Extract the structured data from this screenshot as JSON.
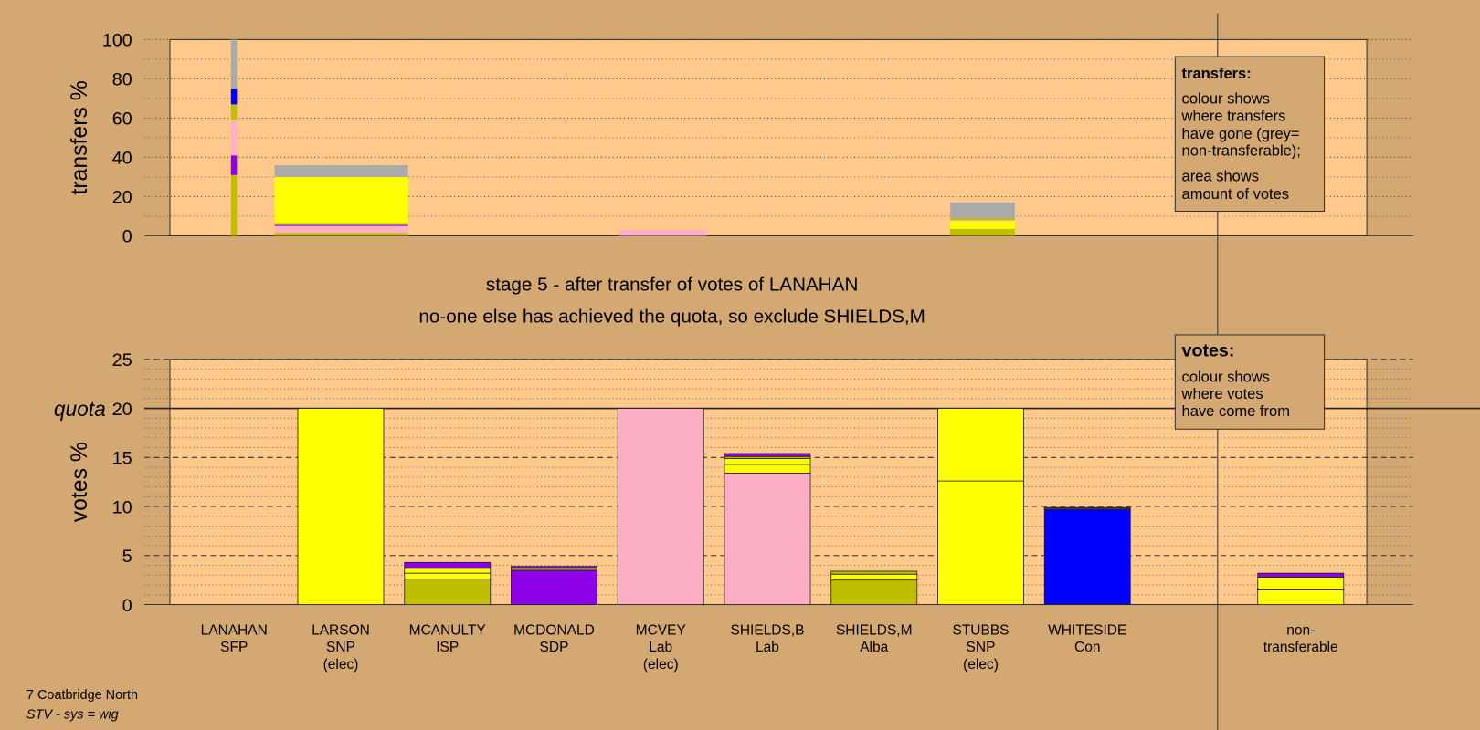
{
  "chart_data": [
    {
      "type": "mosaic",
      "ylabel": "transfers %",
      "ylim": [
        0,
        100
      ],
      "yticks": [
        0,
        20,
        40,
        60,
        80,
        100
      ],
      "yminor_ticks": [
        10,
        30,
        50,
        70,
        90
      ],
      "major_grid": "dotted",
      "xlim": [
        0,
        100
      ],
      "bars": [
        {
          "x": [
            5.1,
            5.6
          ],
          "segments": [
            {
              "color": "#bfbf00",
              "value": 31
            },
            {
              "color": "#8b00e8",
              "value": 10
            },
            {
              "color": "#ffb0c8",
              "value": 18
            },
            {
              "color": "#bfbf00",
              "value": 8
            },
            {
              "color": "#0000ff",
              "value": 8
            },
            {
              "color": "#aaaaaa",
              "value": 25
            }
          ]
        },
        {
          "x": [
            8.75,
            19.9
          ],
          "segments": [
            {
              "color": "#bfbf00",
              "value": 1.5
            },
            {
              "color": "#ffb0c8",
              "value": 3.5
            },
            {
              "color": "#8b00e8",
              "value": 0.5
            },
            {
              "color": "#bfbf00",
              "value": 1
            },
            {
              "color": "#ffff00",
              "value": 23.5
            },
            {
              "color": "#aaaaaa",
              "value": 6
            }
          ]
        },
        {
          "x": [
            37.5,
            44.8
          ],
          "segments": [
            {
              "color": "#ffb0c8",
              "value": 3
            }
          ]
        },
        {
          "x": [
            65.2,
            70.6
          ],
          "segments": [
            {
              "color": "#bfbf00",
              "value": 3.5
            },
            {
              "color": "#ffff00",
              "value": 4
            },
            {
              "color": "#ffb0c8",
              "value": 0.5
            },
            {
              "color": "#bfbf00",
              "value": 1
            },
            {
              "color": "#aaaaaa",
              "value": 8
            }
          ]
        }
      ],
      "legend": {
        "title": "transfers:",
        "lines": [
          "colour shows",
          "where transfers",
          "have gone (grey=",
          "non-transferable);"
        ],
        "lines2": [
          "area shows",
          "amount of votes"
        ]
      }
    },
    {
      "type": "bar",
      "ylabel": "votes %",
      "ylim": [
        0,
        25
      ],
      "yticks": [
        0,
        5,
        10,
        15,
        20,
        25
      ],
      "yminor_ticks": [
        1,
        2,
        3,
        4,
        6,
        7,
        8,
        9,
        11,
        12,
        13,
        14,
        16,
        17,
        18,
        19,
        21,
        22,
        23,
        24
      ],
      "major_grid": "dashed",
      "quota": {
        "value": 20,
        "label": "quota"
      },
      "categories": [
        [
          "LANAHAN",
          "SFP"
        ],
        [
          "LARSON",
          "SNP",
          "(elec)"
        ],
        [
          "MCANULTY",
          "ISP"
        ],
        [
          "MCDONALD",
          "SDP"
        ],
        [
          "MCVEY",
          "Lab",
          "(elec)"
        ],
        [
          "SHIELDS,B",
          "Lab"
        ],
        [
          "SHIELDS,M",
          "Alba"
        ],
        [
          "STUBBS",
          "SNP",
          "(elec)"
        ],
        [
          "WHITESIDE",
          "Con"
        ],
        null,
        [
          "non-",
          "transferable"
        ]
      ],
      "stacks": [
        [],
        [
          {
            "color": "#ffff00",
            "value": 20
          }
        ],
        [
          {
            "color": "#bfbf00",
            "value": 2.6
          },
          {
            "color": "#ffff00",
            "value": 0.6
          },
          {
            "color": "#ffff00",
            "value": 0.5
          },
          {
            "color": "#8b00e8",
            "value": 0.6
          }
        ],
        [
          {
            "color": "#8b00e8",
            "value": 3.5
          },
          {
            "color": "#bfbf00",
            "value": 0.2
          },
          {
            "color": "#8b00e8",
            "value": 0.2
          }
        ],
        [
          {
            "color": "#fbaec4",
            "value": 20
          }
        ],
        [
          {
            "color": "#fbaec4",
            "value": 13.4
          },
          {
            "color": "#ffff00",
            "value": 0.9
          },
          {
            "color": "#ffff00",
            "value": 0.6
          },
          {
            "color": "#bfbf00",
            "value": 0.2
          },
          {
            "color": "#8b00e8",
            "value": 0.3
          }
        ],
        [
          {
            "color": "#bfbf00",
            "value": 2.5
          },
          {
            "color": "#ffff00",
            "value": 0.6
          },
          {
            "color": "#bfbf00",
            "value": 0.3
          }
        ],
        [
          {
            "color": "#ffff00",
            "value": 12.6
          },
          {
            "color": "#ffff00",
            "value": 7.4
          }
        ],
        [
          {
            "color": "#0000ff",
            "value": 9.7
          },
          {
            "color": "#bfbf00",
            "value": 0.1
          },
          {
            "color": "#8b00e8",
            "value": 0.1
          }
        ],
        [],
        [
          {
            "color": "#ffff00",
            "value": 1.5
          },
          {
            "color": "#ffff00",
            "value": 1.3
          },
          {
            "color": "#8b00e8",
            "value": 0.4
          }
        ]
      ],
      "legend": {
        "title": "votes:",
        "lines": [
          "colour shows",
          "where votes",
          "have come from"
        ]
      }
    }
  ],
  "heading": [
    "stage 5 - after transfer of votes of LANAHAN",
    "no-one else has achieved the quota, so exclude SHIELDS,M"
  ],
  "footer": {
    "area": "7 Coatbridge North",
    "system": "STV - sys = wig"
  }
}
